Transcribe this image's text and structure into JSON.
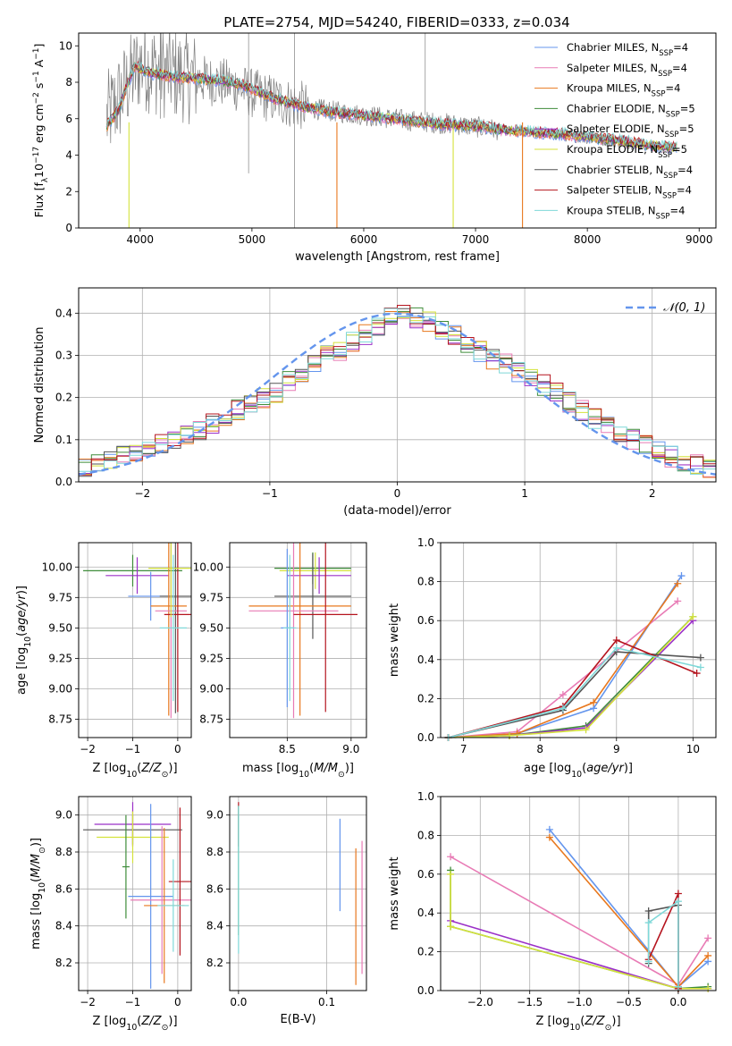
{
  "title": "PLATE=2754, MJD=54240, FIBERID=0333, z=0.034",
  "colors": {
    "chabrier_miles": "#6495ED",
    "salpeter_miles": "#E87BB5",
    "kroupa_miles": "#E8781E",
    "chabrier_elodie": "#3F8C3A",
    "salpeter_elodie": "#9B30C8",
    "kroupa_elodie": "#D4E23A",
    "chabrier_stelib": "#555555",
    "salpeter_stelib": "#B5141E",
    "kroupa_stelib": "#7FD8D8",
    "data": "#808080",
    "grid": "#b0b0b0"
  },
  "chart_data": [
    {
      "id": "spectrum",
      "type": "line",
      "xlabel": "wavelength [Angstrom, rest frame]",
      "ylabel": "Flux [f_λ 10^-17 erg cm^-2 s^-1 A^-1]",
      "xlim": [
        3450,
        9150
      ],
      "ylim": [
        0,
        10.7
      ],
      "xticks": [
        4000,
        5000,
        6000,
        7000,
        8000,
        9000
      ],
      "yticks": [
        0,
        2,
        4,
        6,
        8,
        10
      ],
      "grid": false,
      "legend_position": "top-right",
      "legend": [
        {
          "label": "Chabrier MILES, N",
          "sub": "SSP",
          "suffix": "=4",
          "color": "#6495ED"
        },
        {
          "label": "Salpeter MILES, N",
          "sub": "SSP",
          "suffix": "=4",
          "color": "#E87BB5"
        },
        {
          "label": "Kroupa MILES, N",
          "sub": "SSP",
          "suffix": "=4",
          "color": "#E8781E"
        },
        {
          "label": "Chabrier ELODIE, N",
          "sub": "SSP",
          "suffix": "=5",
          "color": "#3F8C3A"
        },
        {
          "label": "Salpeter ELODIE, N",
          "sub": "SSP",
          "suffix": "=5",
          "color": "#9B30C8"
        },
        {
          "label": "Kroupa ELODIE, N",
          "sub": "SSP",
          "suffix": "=5",
          "color": "#D4E23A"
        },
        {
          "label": "Chabrier STELIB, N",
          "sub": "SSP",
          "suffix": "=4",
          "color": "#555555"
        },
        {
          "label": "Salpeter STELIB, N",
          "sub": "SSP",
          "suffix": "=4",
          "color": "#B5141E"
        },
        {
          "label": "Kroupa STELIB, N",
          "sub": "SSP",
          "suffix": "=4",
          "color": "#7FD8D8"
        }
      ],
      "model_curve": {
        "x": [
          3700,
          3800,
          3950,
          4100,
          4300,
          4500,
          4700,
          4900,
          5200,
          5500,
          5800,
          6100,
          6400,
          6700,
          7000,
          7300,
          7450,
          7700,
          8000,
          8300,
          8600,
          8800
        ],
        "y": [
          5.6,
          6.4,
          8.9,
          8.5,
          8.3,
          8.2,
          8.1,
          7.9,
          7.1,
          6.6,
          6.3,
          6.1,
          5.9,
          5.7,
          5.6,
          5.35,
          5.3,
          5.2,
          5.0,
          4.8,
          4.5,
          4.4
        ]
      },
      "data_curve": {
        "x": [
          3700,
          3850,
          4000,
          4200,
          4400,
          4600,
          4800,
          5000,
          5300,
          5600,
          6000,
          6400,
          6800,
          7200,
          7600,
          8000,
          8400,
          8800
        ],
        "y": [
          6.0,
          7.5,
          9.0,
          8.6,
          8.3,
          8.1,
          7.9,
          7.4,
          6.9,
          6.5,
          6.2,
          5.9,
          5.7,
          5.4,
          5.2,
          4.9,
          4.6,
          4.4
        ]
      }
    },
    {
      "id": "residual-histogram",
      "type": "area",
      "xlabel": "(data-model)/error",
      "ylabel": "Normed distribution",
      "xlim": [
        -2.5,
        2.5
      ],
      "ylim": [
        0,
        0.46
      ],
      "xticks": [
        -2,
        -1,
        0,
        1,
        2
      ],
      "yticks": [
        0.0,
        0.1,
        0.2,
        0.3,
        0.4
      ],
      "grid": true,
      "legend_position": "top-right",
      "legend_label": "𝒩(0, 1)",
      "bin_edges_range": [
        -2.5,
        2.5
      ],
      "bins": 50,
      "histogram_envelope": [
        0.03,
        0.04,
        0.05,
        0.06,
        0.07,
        0.08,
        0.09,
        0.1,
        0.11,
        0.12,
        0.14,
        0.15,
        0.17,
        0.18,
        0.2,
        0.21,
        0.24,
        0.26,
        0.28,
        0.3,
        0.31,
        0.33,
        0.35,
        0.37,
        0.39,
        0.4,
        0.39,
        0.38,
        0.36,
        0.35,
        0.33,
        0.31,
        0.29,
        0.28,
        0.26,
        0.25,
        0.23,
        0.21,
        0.19,
        0.17,
        0.15,
        0.13,
        0.11,
        0.1,
        0.09,
        0.07,
        0.06,
        0.05,
        0.04,
        0.03
      ]
    },
    {
      "id": "age-vs-Z",
      "type": "scatter",
      "xlabel": "Z [log10(Z/Z☉)]",
      "ylabel": "age [log10(age/yr)]",
      "xlim": [
        -2.2,
        0.3
      ],
      "ylim": [
        8.6,
        10.2
      ],
      "xticks": [
        -2,
        -1,
        0
      ],
      "yticks": [
        8.75,
        9.0,
        9.25,
        9.5,
        9.75,
        10.0
      ],
      "grid": true,
      "points": [
        {
          "x": -1.0,
          "xerr": 1.1,
          "y": 9.97,
          "yerr": 0.13,
          "series": "chabrier_elodie"
        },
        {
          "x": -0.9,
          "xerr": 0.7,
          "y": 9.93,
          "yerr": 0.15,
          "series": "salpeter_elodie"
        },
        {
          "x": -0.6,
          "xerr": 0.5,
          "y": 9.76,
          "yerr": 0.2,
          "series": "chabrier_miles"
        },
        {
          "x": -0.05,
          "xerr": 0.35,
          "y": 9.76,
          "yerr": 0.96,
          "series": "chabrier_stelib"
        },
        {
          "x": -0.2,
          "xerr": 0.4,
          "y": 9.68,
          "yerr": 0.9,
          "series": "kroupa_miles"
        },
        {
          "x": -0.15,
          "xerr": 0.35,
          "y": 9.64,
          "yerr": 0.88,
          "series": "salpeter_miles"
        },
        {
          "x": 0.0,
          "xerr": 0.3,
          "y": 9.61,
          "yerr": 0.8,
          "series": "salpeter_stelib"
        },
        {
          "x": -0.15,
          "xerr": 0.5,
          "y": 9.99,
          "yerr": 0.4,
          "series": "kroupa_elodie"
        },
        {
          "x": -0.1,
          "xerr": 0.3,
          "y": 9.5,
          "yerr": 0.6,
          "series": "kroupa_stelib"
        }
      ]
    },
    {
      "id": "age-vs-mass",
      "type": "scatter",
      "xlabel": "mass [log10(M/M☉)]",
      "ylabel": "",
      "xlim": [
        8.05,
        9.12
      ],
      "ylim": [
        8.6,
        10.2
      ],
      "xticks": [
        8.5,
        9.0
      ],
      "yticks": [
        8.75,
        9.0,
        9.25,
        9.5,
        9.75,
        10.0
      ],
      "grid": true,
      "points": [
        {
          "x": 8.7,
          "xerr": 0.3,
          "y": 9.99,
          "yerr": 0.13,
          "series": "chabrier_elodie"
        },
        {
          "x": 8.72,
          "xerr": 0.28,
          "y": 9.97,
          "yerr": 0.15,
          "series": "kroupa_elodie"
        },
        {
          "x": 8.75,
          "xerr": 0.25,
          "y": 9.93,
          "yerr": 0.15,
          "series": "salpeter_elodie"
        },
        {
          "x": 8.7,
          "xerr": 0.3,
          "y": 9.76,
          "yerr": 0.35,
          "series": "chabrier_stelib"
        },
        {
          "x": 8.6,
          "xerr": 0.4,
          "y": 9.68,
          "yerr": 0.9,
          "series": "kroupa_miles"
        },
        {
          "x": 8.55,
          "xerr": 0.35,
          "y": 9.64,
          "yerr": 0.88,
          "series": "salpeter_miles"
        },
        {
          "x": 8.8,
          "xerr": 0.25,
          "y": 9.61,
          "yerr": 0.8,
          "series": "salpeter_stelib"
        },
        {
          "x": 8.5,
          "xerr": 0.05,
          "y": 9.5,
          "yerr": 0.65,
          "series": "chabrier_miles"
        },
        {
          "x": 8.52,
          "xerr": 0.05,
          "y": 9.5,
          "yerr": 0.6,
          "series": "kroupa_stelib"
        }
      ]
    },
    {
      "id": "mass-weight-vs-age",
      "type": "line",
      "xlabel": "age  [log10(age/yr)]",
      "ylabel": "mass weight",
      "xlim": [
        6.7,
        10.3
      ],
      "ylim": [
        0.0,
        1.0
      ],
      "xticks": [
        7,
        8,
        9,
        10
      ],
      "yticks": [
        0.0,
        0.2,
        0.4,
        0.6,
        0.8,
        1.0
      ],
      "grid": true,
      "series": [
        {
          "name": "Chabrier MILES",
          "color": "#6495ED",
          "x": [
            6.8,
            7.7,
            8.7,
            9.85
          ],
          "y": [
            0.0,
            0.02,
            0.15,
            0.83
          ]
        },
        {
          "name": "Salpeter MILES",
          "color": "#E87BB5",
          "x": [
            6.8,
            7.7,
            8.3,
            9.8
          ],
          "y": [
            0.0,
            0.03,
            0.22,
            0.7
          ]
        },
        {
          "name": "Kroupa MILES",
          "color": "#E8781E",
          "x": [
            6.8,
            7.7,
            8.7,
            9.8
          ],
          "y": [
            0.0,
            0.02,
            0.18,
            0.79
          ]
        },
        {
          "name": "Chabrier ELODIE",
          "color": "#3F8C3A",
          "x": [
            6.8,
            7.6,
            8.6,
            10.0
          ],
          "y": [
            0.0,
            0.01,
            0.06,
            0.62
          ]
        },
        {
          "name": "Salpeter ELODIE",
          "color": "#9B30C8",
          "x": [
            6.8,
            7.6,
            8.6,
            10.0
          ],
          "y": [
            0.0,
            0.01,
            0.05,
            0.6
          ]
        },
        {
          "name": "Kroupa ELODIE",
          "color": "#D4E23A",
          "x": [
            6.8,
            7.6,
            8.6,
            10.0
          ],
          "y": [
            0.0,
            0.01,
            0.04,
            0.62
          ]
        },
        {
          "name": "Chabrier STELIB",
          "color": "#555555",
          "x": [
            6.8,
            8.3,
            9.0,
            10.1
          ],
          "y": [
            0.0,
            0.14,
            0.44,
            0.41
          ]
        },
        {
          "name": "Salpeter STELIB",
          "color": "#B5141E",
          "x": [
            6.8,
            8.3,
            9.0,
            10.05
          ],
          "y": [
            0.0,
            0.16,
            0.5,
            0.33
          ]
        },
        {
          "name": "Kroupa STELIB",
          "color": "#7FD8D8",
          "x": [
            6.8,
            8.3,
            9.0,
            10.1
          ],
          "y": [
            0.0,
            0.15,
            0.46,
            0.36
          ]
        }
      ]
    },
    {
      "id": "mass-vs-Z",
      "type": "scatter",
      "xlabel": "Z [log10(Z/Z☉)]",
      "ylabel": "mass [log10(M/M☉)]",
      "xlim": [
        -2.2,
        0.3
      ],
      "ylim": [
        8.05,
        9.1
      ],
      "xticks": [
        -2,
        -1,
        0
      ],
      "yticks": [
        8.2,
        8.4,
        8.6,
        8.8,
        9.0
      ],
      "grid": true,
      "points": [
        {
          "x": -1.0,
          "xerr": 1.1,
          "y": 8.92,
          "yerr": 0.08,
          "series": "chabrier_stelib"
        },
        {
          "x": -1.0,
          "xerr": 0.85,
          "y": 8.95,
          "yerr": 0.12,
          "series": "salpeter_elodie"
        },
        {
          "x": -1.0,
          "xerr": 0.8,
          "y": 8.88,
          "yerr": 0.14,
          "series": "kroupa_elodie"
        },
        {
          "x": -1.15,
          "xerr": 0.08,
          "y": 8.72,
          "yerr": 0.28,
          "series": "chabrier_elodie"
        },
        {
          "x": -0.6,
          "xerr": 0.5,
          "y": 8.56,
          "yerr": 0.5,
          "series": "chabrier_miles"
        },
        {
          "x": -0.35,
          "xerr": 0.7,
          "y": 8.54,
          "yerr": 0.4,
          "series": "salpeter_miles"
        },
        {
          "x": -0.3,
          "xerr": 0.45,
          "y": 8.51,
          "yerr": 0.42,
          "series": "kroupa_miles"
        },
        {
          "x": 0.05,
          "xerr": 0.25,
          "y": 8.64,
          "yerr": 0.4,
          "series": "salpeter_stelib"
        },
        {
          "x": -0.1,
          "xerr": 0.35,
          "y": 8.51,
          "yerr": 0.25,
          "series": "kroupa_stelib"
        }
      ]
    },
    {
      "id": "mass-vs-EBV",
      "type": "scatter",
      "xlabel": "E(B-V)",
      "ylabel": "",
      "xlim": [
        -0.01,
        0.145
      ],
      "ylim": [
        8.05,
        9.1
      ],
      "xticks": [
        0.0,
        0.1
      ],
      "yticks": [
        8.2,
        8.4,
        8.6,
        8.8,
        9.0
      ],
      "grid": true,
      "points": [
        {
          "x": 0.0,
          "xerr": 0.0,
          "y": 8.95,
          "yerr": 0.12,
          "series": "salpeter_stelib"
        },
        {
          "x": 0.0,
          "xerr": 0.0,
          "y": 8.7,
          "yerr": 0.35,
          "series": "chabrier_elodie"
        },
        {
          "x": 0.0,
          "xerr": 0.0,
          "y": 8.65,
          "yerr": 0.4,
          "series": "kroupa_stelib"
        },
        {
          "x": 0.115,
          "xerr": 0.0,
          "y": 8.73,
          "yerr": 0.25,
          "series": "chabrier_miles"
        },
        {
          "x": 0.133,
          "xerr": 0.0,
          "y": 8.45,
          "yerr": 0.37,
          "series": "kroupa_miles"
        },
        {
          "x": 0.14,
          "xerr": 0.0,
          "y": 8.5,
          "yerr": 0.36,
          "series": "salpeter_miles"
        }
      ]
    },
    {
      "id": "mass-weight-vs-Z",
      "type": "line",
      "xlabel": "Z [log10(Z/Z☉)]",
      "ylabel": "mass weight",
      "xlim": [
        -2.4,
        0.38
      ],
      "ylim": [
        0.0,
        1.0
      ],
      "xticks": [
        -2.0,
        -1.5,
        -1.0,
        -0.5,
        0.0
      ],
      "yticks": [
        0.0,
        0.2,
        0.4,
        0.6,
        0.8,
        1.0
      ],
      "grid": true,
      "series": [
        {
          "name": "Chabrier MILES",
          "color": "#6495ED",
          "x": [
            -1.3,
            0.0,
            0.3
          ],
          "y": [
            0.83,
            0.02,
            0.15
          ]
        },
        {
          "name": "Salpeter MILES",
          "color": "#E87BB5",
          "x": [
            -2.3,
            0.0,
            0.3
          ],
          "y": [
            0.69,
            0.03,
            0.27
          ]
        },
        {
          "name": "Kroupa MILES",
          "color": "#E8781E",
          "x": [
            -1.3,
            0.0,
            0.3
          ],
          "y": [
            0.79,
            0.02,
            0.18
          ]
        },
        {
          "name": "Chabrier ELODIE",
          "color": "#3F8C3A",
          "x": [
            -2.3,
            -2.3,
            0.0,
            0.3
          ],
          "y": [
            0.62,
            0.33,
            0.01,
            0.02
          ]
        },
        {
          "name": "Salpeter ELODIE",
          "color": "#9B30C8",
          "x": [
            -2.3,
            0.0,
            0.3
          ],
          "y": [
            0.36,
            0.01,
            0.01
          ]
        },
        {
          "name": "Kroupa ELODIE",
          "color": "#D4E23A",
          "x": [
            -2.3,
            -2.3,
            0.0,
            0.3
          ],
          "y": [
            0.6,
            0.33,
            0.01,
            0.01
          ]
        },
        {
          "name": "Chabrier STELIB",
          "color": "#555555",
          "x": [
            -0.3,
            -0.3,
            0.0,
            0.0
          ],
          "y": [
            0.14,
            0.41,
            0.44,
            0.02
          ]
        },
        {
          "name": "Salpeter STELIB",
          "color": "#B5141E",
          "x": [
            -0.3,
            0.0,
            0.0
          ],
          "y": [
            0.16,
            0.5,
            0.01
          ]
        },
        {
          "name": "Kroupa STELIB",
          "color": "#7FD8D8",
          "x": [
            -0.3,
            -0.3,
            0.0,
            0.0
          ],
          "y": [
            0.15,
            0.35,
            0.46,
            0.02
          ]
        }
      ]
    }
  ]
}
